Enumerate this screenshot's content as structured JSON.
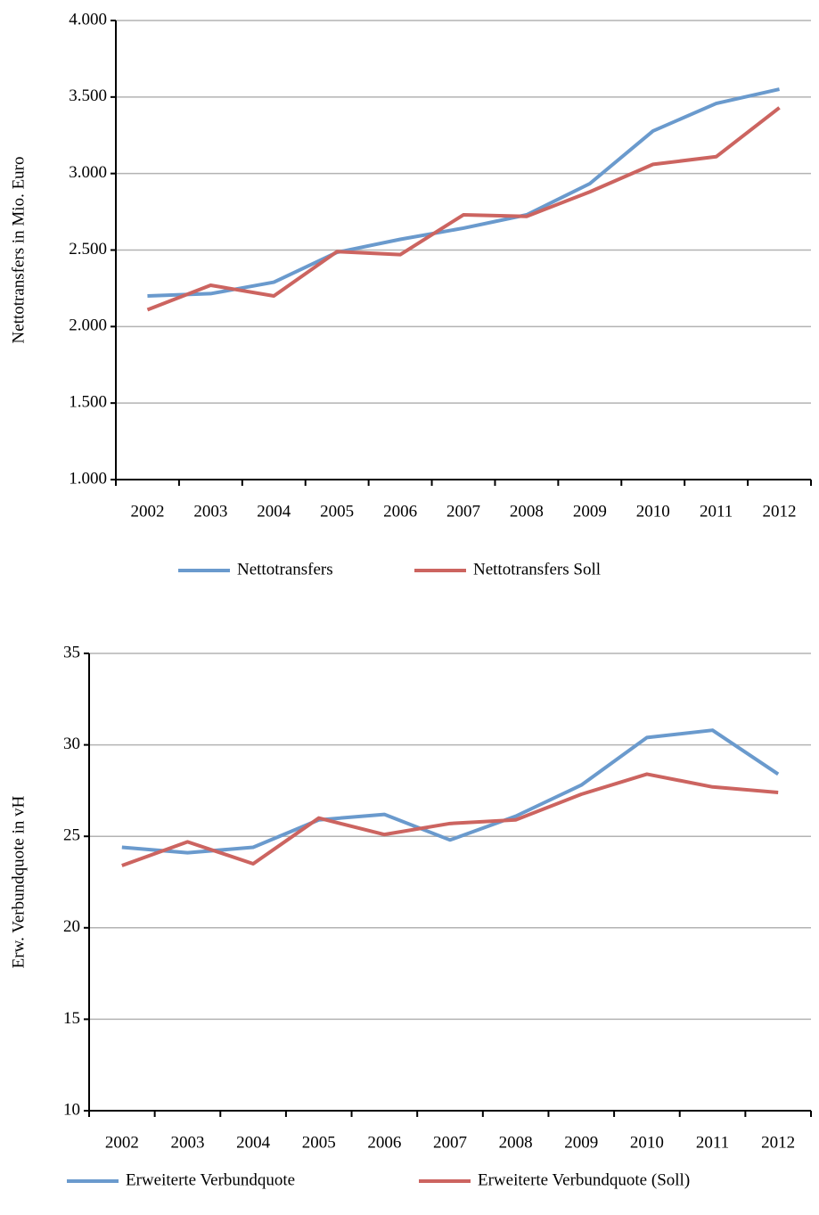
{
  "chart_data": [
    {
      "type": "line",
      "y_label": "Nettotransfers in Mio. Euro",
      "categories": [
        "2002",
        "2003",
        "2004",
        "2005",
        "2006",
        "2007",
        "2008",
        "2009",
        "2010",
        "2011",
        "2012"
      ],
      "series": [
        {
          "name": "Nettotransfers",
          "color": "#6a9acd",
          "values": [
            2200,
            2215,
            2290,
            2485,
            2570,
            2643,
            2730,
            2934,
            3278,
            3458,
            3551
          ]
        },
        {
          "name": "Nettotransfers Soll",
          "color": "#cc6460",
          "values": [
            2110,
            2270,
            2200,
            2490,
            2470,
            2730,
            2720,
            2880,
            3060,
            3110,
            3430
          ]
        }
      ],
      "ylim": [
        1000,
        4000
      ],
      "yticks": [
        {
          "value": 1000,
          "label": "1.000"
        },
        {
          "value": 1500,
          "label": "1.500"
        },
        {
          "value": 2000,
          "label": "2.000"
        },
        {
          "value": 2500,
          "label": "2.500"
        },
        {
          "value": 3000,
          "label": "3.000"
        },
        {
          "value": 3500,
          "label": "3.500"
        },
        {
          "value": 4000,
          "label": "4.000"
        }
      ],
      "grid": true,
      "legend": "bottom"
    },
    {
      "type": "line",
      "y_label": "Erw. Verbundquote in vH",
      "categories": [
        "2002",
        "2003",
        "2004",
        "2005",
        "2006",
        "2007",
        "2008",
        "2009",
        "2010",
        "2011",
        "2012"
      ],
      "series": [
        {
          "name": "Erweiterte Verbundquote",
          "color": "#6a9acd",
          "values": [
            24.4,
            24.1,
            24.4,
            25.9,
            26.2,
            24.8,
            26.1,
            27.8,
            30.4,
            30.8,
            28.4
          ]
        },
        {
          "name": "Erweiterte Verbundquote (Soll)",
          "color": "#cc6460",
          "values": [
            23.4,
            24.7,
            23.5,
            26.0,
            25.1,
            25.7,
            25.9,
            27.3,
            28.4,
            27.7,
            27.4
          ]
        }
      ],
      "ylim": [
        10,
        35
      ],
      "yticks": [
        10,
        15,
        20,
        25,
        30,
        35
      ],
      "grid": true,
      "legend": "bottom"
    }
  ]
}
